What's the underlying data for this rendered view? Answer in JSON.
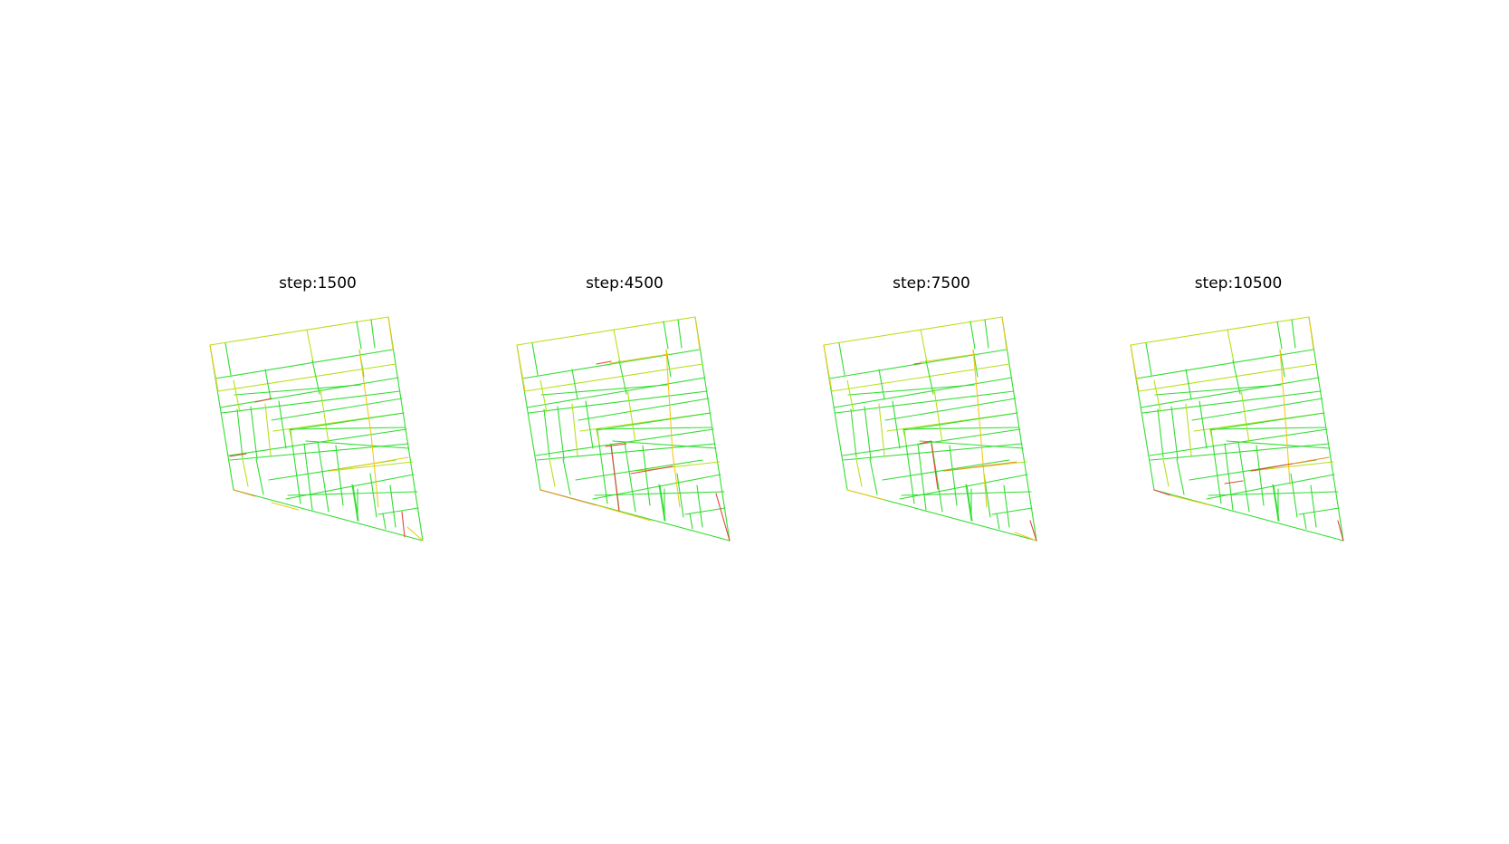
{
  "panels": [
    {
      "title": "step:1500"
    },
    {
      "title": "step:4500"
    },
    {
      "title": "step:7500"
    },
    {
      "title": "step:10500"
    }
  ],
  "colors": {
    "background": "#ffffff",
    "green": "#33dd33",
    "yellow_green": "#b8e01c",
    "yellow": "#f2c81a",
    "orange": "#f08a2a",
    "red": "#e8423a"
  },
  "legend": []
}
